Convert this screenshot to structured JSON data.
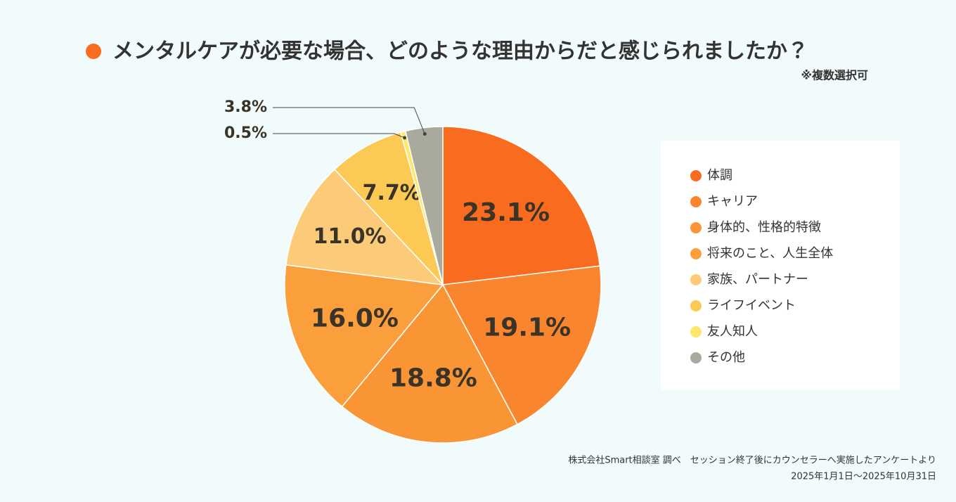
{
  "chart_data": {
    "type": "pie",
    "title": "メンタルケアが必要な場合、どのような理由からだと感じられましたか？",
    "subtitle": "※複数選択可",
    "categories": [
      "体調",
      "キャリア",
      "身体的、性格的特徴",
      "将来のこと、人生全体",
      "家族、パートナー",
      "ライフイベント",
      "友人知人",
      "その他"
    ],
    "values": [
      23.1,
      19.1,
      18.8,
      16,
      11,
      7.7,
      0.5,
      3.8
    ],
    "value_labels": [
      "23.1%",
      "19.1%",
      "18.8%",
      "16.0%",
      "11.0%",
      "7.7%",
      "0.5%",
      "3.8%"
    ],
    "colors": [
      "#f96b1e",
      "#f9862e",
      "#fa9535",
      "#fa9f3b",
      "#fccb7a",
      "#fcc955",
      "#fce96a",
      "#aaa99e"
    ],
    "source": [
      "株式会社Smart相談室 調べ　セッション終了後にカウンセラーへ実施したアンケートより",
      "2025年1月1日〜2025年10月31日"
    ]
  }
}
